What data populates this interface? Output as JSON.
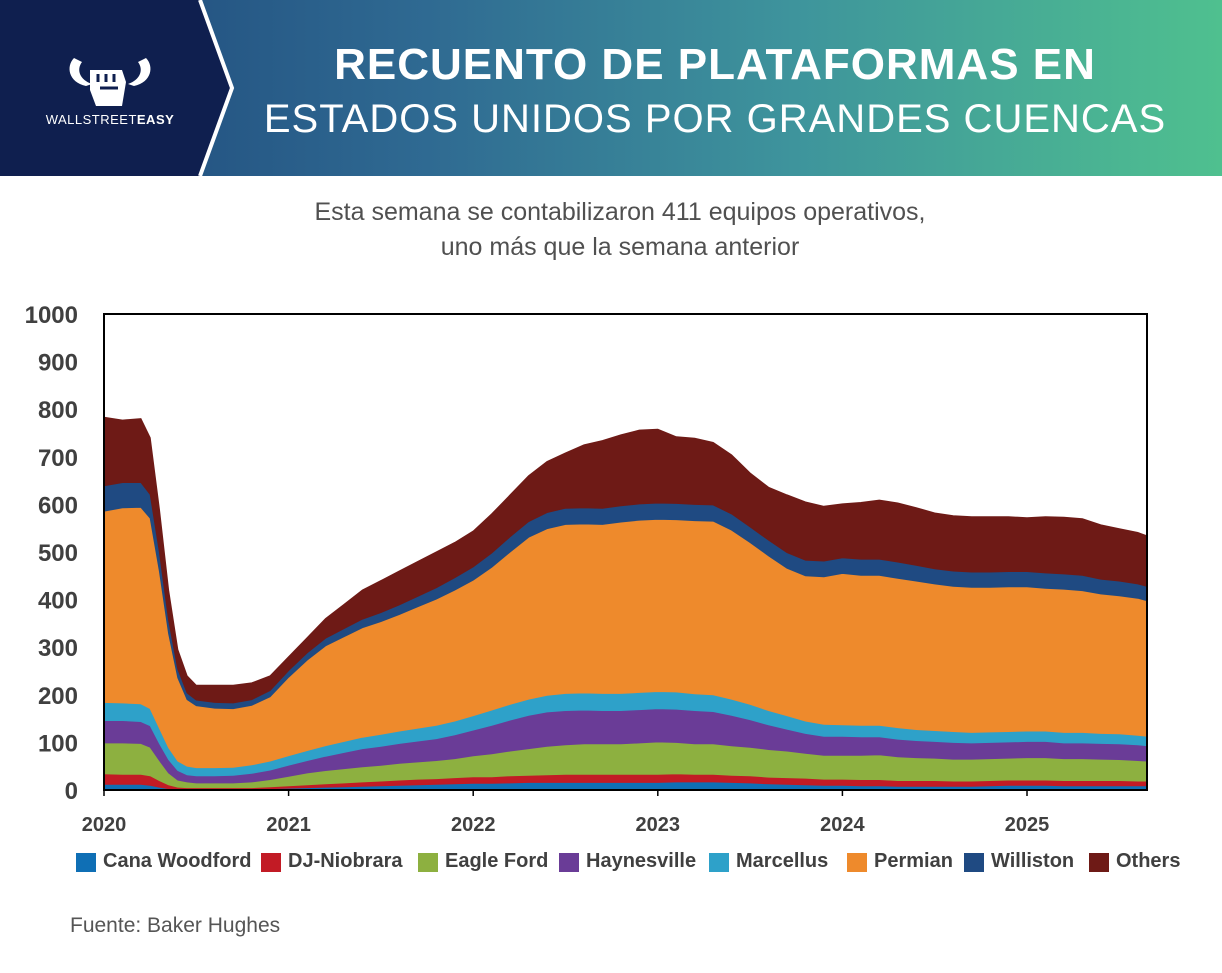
{
  "header": {
    "brand_prefix": "WALLSTREET",
    "brand_suffix": "EASY",
    "title_line1": "RECUENTO DE PLATAFORMAS EN",
    "title_line2": "ESTADOS UNIDOS POR GRANDES CUENCAS"
  },
  "subtitle": {
    "line1": "Esta semana se contabilizaron 411 equipos operativos,",
    "line2": "uno más que la semana anterior"
  },
  "source": "Fuente: Baker Hughes",
  "chart_data": {
    "type": "area",
    "stacked": true,
    "title": "RECUENTO DE PLATAFORMAS EN ESTADOS UNIDOS POR GRANDES CUENCAS",
    "ylim": [
      0,
      1000
    ],
    "yticks": [
      0,
      100,
      200,
      300,
      400,
      500,
      600,
      700,
      800,
      900,
      1000
    ],
    "xlim": [
      2020.0,
      2025.65
    ],
    "xticks": [
      {
        "value": 2020,
        "label": "2020"
      },
      {
        "value": 2021,
        "label": "2021"
      },
      {
        "value": 2022,
        "label": "2022"
      },
      {
        "value": 2023,
        "label": "2023"
      },
      {
        "value": 2024,
        "label": "2024"
      },
      {
        "value": 2025,
        "label": "2025"
      }
    ],
    "legend_position": "bottom",
    "x": [
      2020.0,
      2020.1,
      2020.2,
      2020.25,
      2020.3,
      2020.35,
      2020.4,
      2020.45,
      2020.5,
      2020.6,
      2020.7,
      2020.8,
      2020.9,
      2021.0,
      2021.1,
      2021.2,
      2021.3,
      2021.4,
      2021.5,
      2021.6,
      2021.7,
      2021.8,
      2021.9,
      2022.0,
      2022.1,
      2022.2,
      2022.3,
      2022.4,
      2022.5,
      2022.6,
      2022.7,
      2022.8,
      2022.9,
      2023.0,
      2023.1,
      2023.2,
      2023.3,
      2023.4,
      2023.5,
      2023.6,
      2023.7,
      2023.8,
      2023.9,
      2024.0,
      2024.1,
      2024.2,
      2024.3,
      2024.4,
      2024.5,
      2024.6,
      2024.7,
      2024.8,
      2024.9,
      2025.0,
      2025.1,
      2025.2,
      2025.3,
      2025.4,
      2025.5,
      2025.6,
      2025.65
    ],
    "series": [
      {
        "name": "Cana Woodford",
        "color": "#0f6fb5",
        "values": [
          12,
          12,
          12,
          10,
          6,
          3,
          2,
          2,
          2,
          2,
          2,
          2,
          3,
          4,
          5,
          6,
          7,
          8,
          9,
          10,
          11,
          12,
          13,
          14,
          14,
          15,
          16,
          16,
          16,
          16,
          16,
          16,
          16,
          16,
          17,
          17,
          17,
          16,
          15,
          13,
          12,
          11,
          10,
          10,
          9,
          9,
          8,
          8,
          8,
          8,
          8,
          9,
          10,
          10,
          10,
          9,
          9,
          9,
          9,
          9,
          9
        ]
      },
      {
        "name": "DJ-Niobrara",
        "color": "#c21b25",
        "values": [
          22,
          21,
          21,
          20,
          14,
          8,
          4,
          3,
          3,
          3,
          3,
          3,
          4,
          5,
          6,
          7,
          8,
          9,
          10,
          11,
          12,
          12,
          13,
          14,
          14,
          15,
          15,
          16,
          17,
          17,
          17,
          17,
          17,
          17,
          17,
          16,
          16,
          15,
          15,
          14,
          14,
          14,
          13,
          13,
          13,
          13,
          12,
          12,
          12,
          11,
          11,
          11,
          11,
          11,
          11,
          11,
          11,
          11,
          11,
          10,
          10
        ]
      },
      {
        "name": "Eagle Ford",
        "color": "#8db040",
        "values": [
          65,
          66,
          65,
          60,
          42,
          25,
          15,
          12,
          10,
          10,
          10,
          12,
          15,
          20,
          25,
          28,
          30,
          32,
          33,
          35,
          36,
          38,
          40,
          44,
          48,
          52,
          56,
          60,
          62,
          64,
          64,
          64,
          66,
          68,
          66,
          64,
          64,
          62,
          60,
          58,
          56,
          52,
          50,
          50,
          51,
          52,
          50,
          48,
          47,
          46,
          46,
          46,
          46,
          47,
          47,
          46,
          46,
          45,
          44,
          43,
          42
        ]
      },
      {
        "name": "Haynesville",
        "color": "#6a3c97",
        "values": [
          47,
          47,
          46,
          45,
          36,
          28,
          20,
          15,
          15,
          15,
          16,
          18,
          20,
          23,
          26,
          30,
          34,
          38,
          40,
          42,
          44,
          46,
          50,
          54,
          60,
          65,
          70,
          72,
          72,
          71,
          70,
          70,
          70,
          70,
          70,
          70,
          68,
          64,
          58,
          52,
          46,
          42,
          40,
          40,
          39,
          38,
          37,
          36,
          35,
          35,
          34,
          34,
          34,
          34,
          34,
          33,
          33,
          33,
          33,
          33,
          32
        ]
      },
      {
        "name": "Marcellus",
        "color": "#2ea1c9",
        "values": [
          38,
          37,
          37,
          36,
          32,
          25,
          20,
          18,
          17,
          17,
          17,
          18,
          19,
          20,
          21,
          22,
          23,
          24,
          25,
          26,
          27,
          28,
          29,
          30,
          32,
          33,
          34,
          35,
          36,
          36,
          36,
          36,
          36,
          36,
          36,
          35,
          35,
          34,
          32,
          30,
          28,
          26,
          25,
          24,
          24,
          24,
          24,
          23,
          23,
          23,
          22,
          22,
          22,
          22,
          22,
          22,
          22,
          21,
          21,
          20,
          20
        ]
      },
      {
        "name": "Permian",
        "color": "#ee8a2c",
        "values": [
          402,
          410,
          413,
          400,
          330,
          240,
          175,
          140,
          130,
          125,
          123,
          125,
          135,
          165,
          190,
          210,
          220,
          230,
          237,
          245,
          255,
          265,
          275,
          285,
          300,
          320,
          340,
          350,
          355,
          355,
          355,
          360,
          362,
          362,
          362,
          364,
          365,
          355,
          340,
          325,
          310,
          305,
          310,
          318,
          315,
          315,
          314,
          312,
          308,
          305,
          305,
          304,
          304,
          303,
          300,
          301,
          298,
          293,
          290,
          288,
          285
        ]
      },
      {
        "name": "Williston",
        "color": "#1f4a82",
        "values": [
          53,
          53,
          52,
          50,
          40,
          28,
          18,
          14,
          12,
          12,
          12,
          12,
          13,
          14,
          15,
          16,
          17,
          18,
          19,
          20,
          22,
          24,
          26,
          28,
          30,
          32,
          33,
          34,
          34,
          34,
          34,
          34,
          34,
          34,
          34,
          34,
          34,
          34,
          33,
          33,
          33,
          33,
          33,
          33,
          34,
          34,
          34,
          33,
          32,
          32,
          32,
          32,
          32,
          32,
          32,
          32,
          32,
          31,
          31,
          30,
          30
        ]
      },
      {
        "name": "Others",
        "color": "#6e1a16",
        "values": [
          144,
          131,
          134,
          119,
          90,
          63,
          41,
          36,
          31,
          36,
          37,
          35,
          31,
          29,
          32,
          41,
          51,
          61,
          67,
          71,
          73,
          75,
          74,
          75,
          82,
          88,
          96,
          107,
          116,
          132,
          142,
          149,
          155,
          155,
          140,
          139,
          131,
          124,
          113,
          111,
          121,
          122,
          115,
          113,
          119,
          124,
          124,
          121,
          117,
          116,
          116,
          116,
          115,
          113,
          118,
          119,
          119,
          114,
          110,
          108,
          106
        ]
      }
    ]
  }
}
